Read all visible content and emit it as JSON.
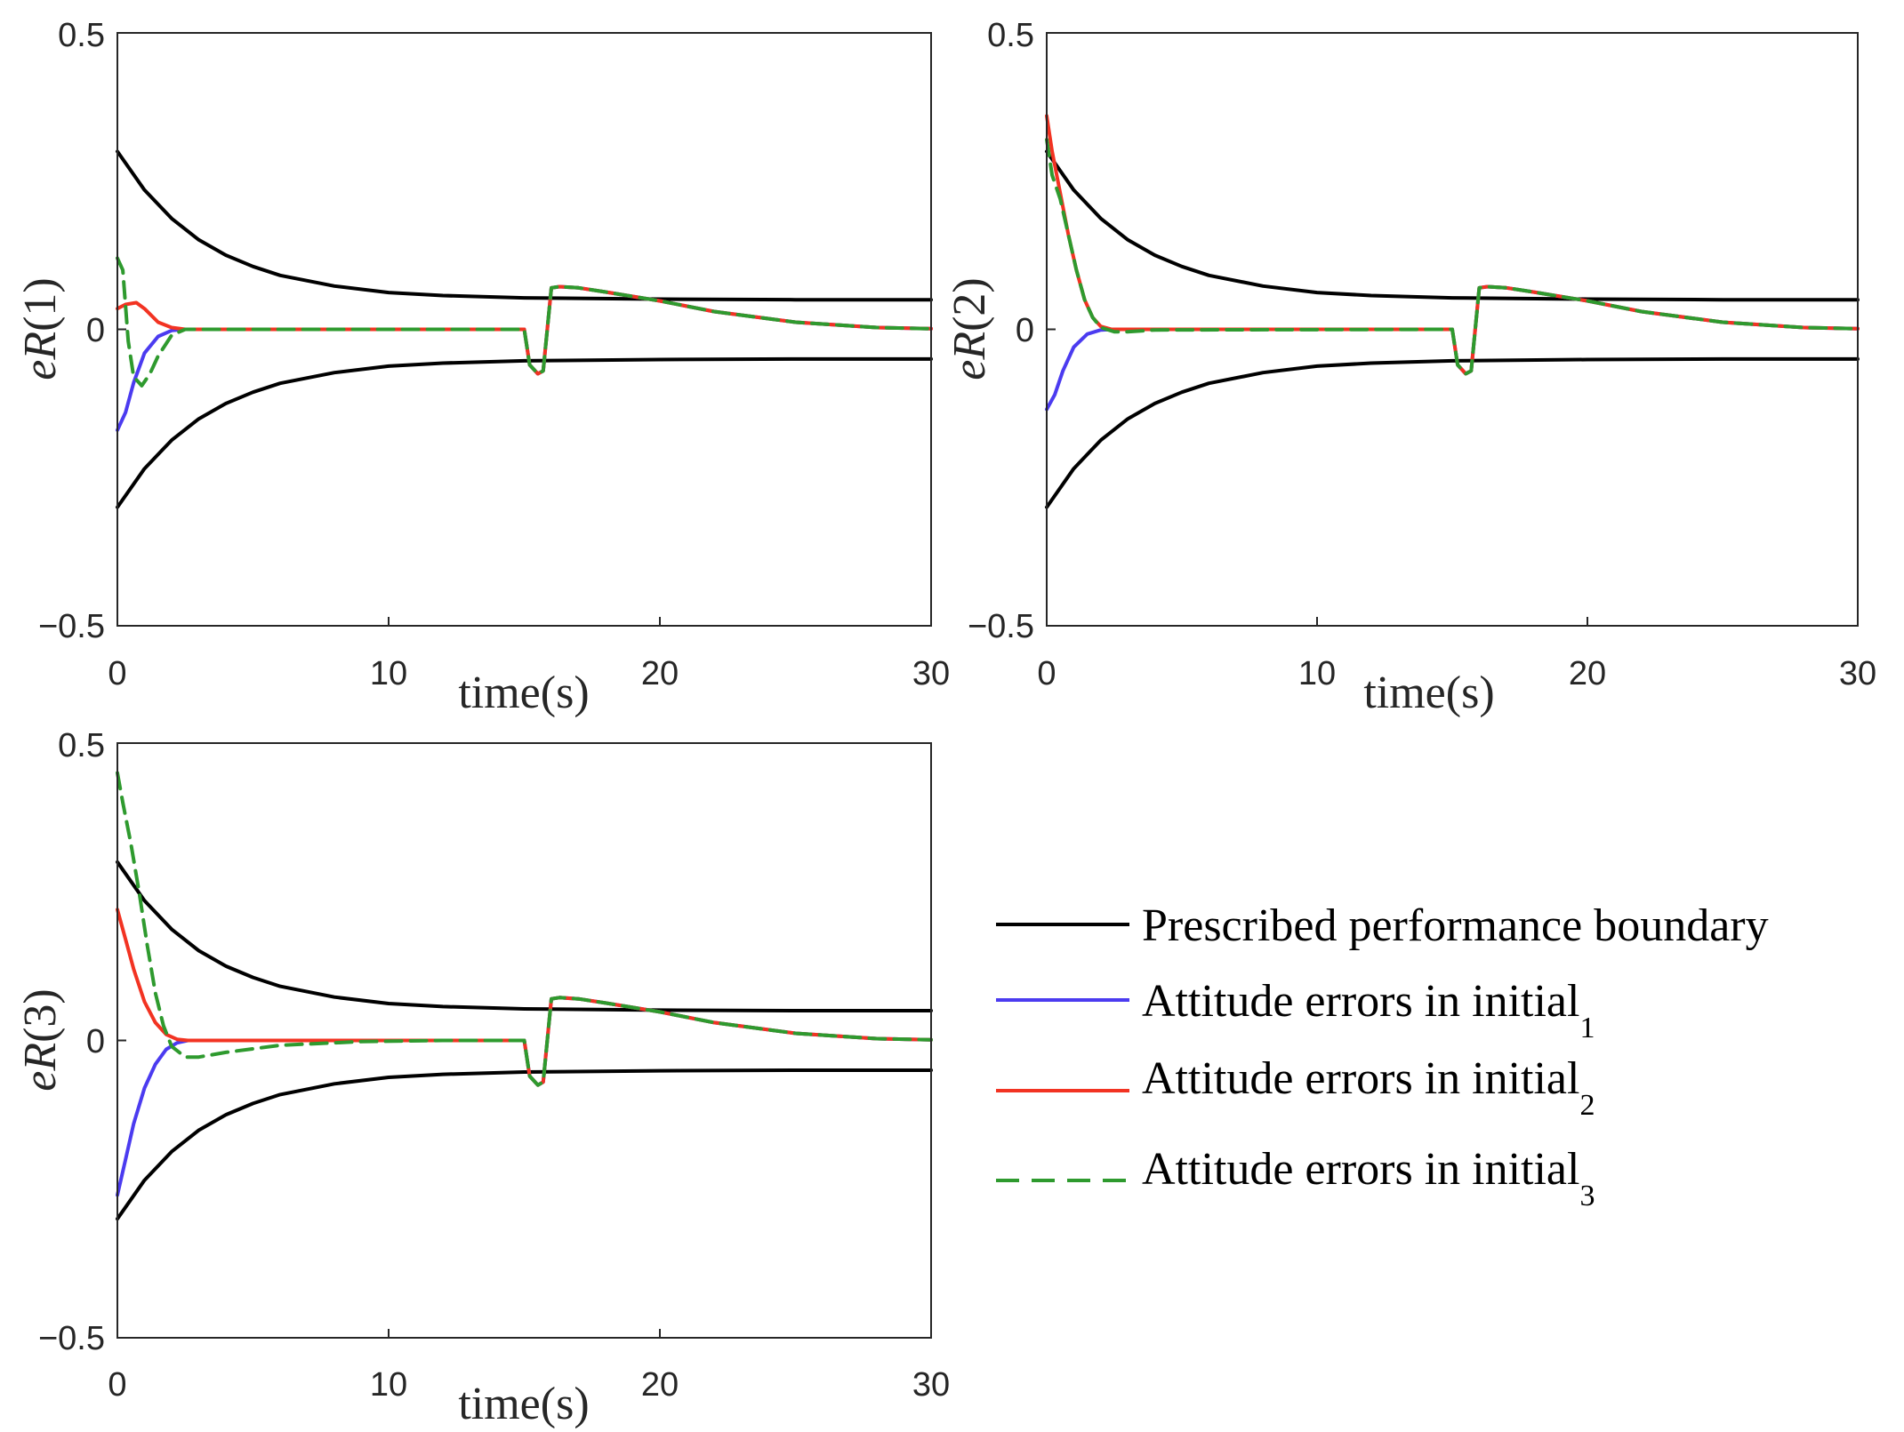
{
  "colors": {
    "boundary": "#000000",
    "initial_1": "#4B3BF0",
    "initial_2": "#F23322",
    "initial_3": "#2E9A2E",
    "axis": "#262626"
  },
  "legend": {
    "items": [
      {
        "key": "boundary",
        "label": "Prescribed performance boundary",
        "sub": "",
        "dash": false
      },
      {
        "key": "initial_1",
        "label": "Attitude errors in initial",
        "sub": "1",
        "dash": false
      },
      {
        "key": "initial_2",
        "label": "Attitude errors in initial",
        "sub": "2",
        "dash": false
      },
      {
        "key": "initial_3",
        "label": "Attitude errors in initial",
        "sub": "3",
        "dash": true
      }
    ]
  },
  "chart_data": [
    {
      "type": "line",
      "id": "eR1",
      "ylabel_var": "eR",
      "ylabel_arg": "(1)",
      "xlabel": "time(s)",
      "xlim": [
        0,
        30
      ],
      "ylim": [
        -0.5,
        0.5
      ],
      "xticks": [
        "0",
        "10",
        "20",
        "30"
      ],
      "yticks": [
        "0.5",
        "0",
        "−0.5"
      ],
      "boundary": {
        "rho0": 0.3,
        "rho_inf": 0.05,
        "decay": 0.3
      },
      "series": [
        {
          "name": "Prescribed performance boundary (upper)",
          "key": "boundary",
          "x": [
            0,
            1,
            2,
            3,
            4,
            5,
            6,
            8,
            10,
            12,
            15,
            20,
            25,
            30
          ],
          "y": [
            0.3,
            0.235,
            0.187,
            0.151,
            0.125,
            0.106,
            0.091,
            0.073,
            0.062,
            0.057,
            0.053,
            0.051,
            0.05,
            0.05
          ]
        },
        {
          "name": "Prescribed performance boundary (lower)",
          "key": "boundary",
          "x": [
            0,
            1,
            2,
            3,
            4,
            5,
            6,
            8,
            10,
            12,
            15,
            20,
            25,
            30
          ],
          "y": [
            -0.3,
            -0.235,
            -0.187,
            -0.151,
            -0.125,
            -0.106,
            -0.091,
            -0.073,
            -0.062,
            -0.057,
            -0.053,
            -0.051,
            -0.05,
            -0.05
          ]
        },
        {
          "name": "Attitude errors in initial 1",
          "key": "initial_1",
          "x": [
            0,
            0.3,
            0.6,
            1.0,
            1.5,
            2.0,
            2.5,
            15.0,
            15.2,
            15.5,
            15.7,
            16.0,
            16.3,
            17.0,
            18.0,
            20.0,
            22.0,
            25.0,
            28.0,
            30.0
          ],
          "y": [
            -0.17,
            -0.14,
            -0.09,
            -0.04,
            -0.012,
            -0.002,
            0,
            0,
            -0.06,
            -0.075,
            -0.07,
            0.07,
            0.072,
            0.07,
            0.063,
            0.048,
            0.03,
            0.012,
            0.003,
            0.001
          ]
        },
        {
          "name": "Attitude errors in initial 2",
          "key": "initial_2",
          "x": [
            0,
            0.3,
            0.7,
            1.0,
            1.5,
            2.0,
            2.5,
            15.0,
            15.2,
            15.5,
            15.7,
            16.0,
            16.3,
            17.0,
            18.0,
            20.0,
            22.0,
            25.0,
            28.0,
            30.0
          ],
          "y": [
            0.035,
            0.042,
            0.045,
            0.035,
            0.012,
            0.003,
            0,
            0,
            -0.06,
            -0.075,
            -0.07,
            0.07,
            0.072,
            0.07,
            0.063,
            0.048,
            0.03,
            0.012,
            0.003,
            0.001
          ]
        },
        {
          "name": "Attitude errors in initial 3",
          "key": "initial_3",
          "x": [
            0,
            0.2,
            0.4,
            0.6,
            0.9,
            1.2,
            1.5,
            2.0,
            2.5,
            15.0,
            15.2,
            15.5,
            15.7,
            16.0,
            16.3,
            17.0,
            18.0,
            20.0,
            22.0,
            25.0,
            28.0,
            30.0
          ],
          "y": [
            0.12,
            0.1,
            -0.02,
            -0.08,
            -0.095,
            -0.075,
            -0.045,
            -0.01,
            0,
            0,
            -0.06,
            -0.075,
            -0.07,
            0.07,
            0.072,
            0.07,
            0.063,
            0.048,
            0.03,
            0.012,
            0.003,
            0.001
          ]
        }
      ]
    },
    {
      "type": "line",
      "id": "eR2",
      "ylabel_var": "eR",
      "ylabel_arg": "(2)",
      "xlabel": "time(s)",
      "xlim": [
        0,
        30
      ],
      "ylim": [
        -0.5,
        0.5
      ],
      "xticks": [
        "0",
        "10",
        "20",
        "30"
      ],
      "yticks": [
        "0.5",
        "0",
        "−0.5"
      ],
      "series": [
        {
          "name": "Prescribed performance boundary (upper)",
          "key": "boundary",
          "x": [
            0,
            1,
            2,
            3,
            4,
            5,
            6,
            8,
            10,
            12,
            15,
            20,
            25,
            30
          ],
          "y": [
            0.3,
            0.235,
            0.187,
            0.151,
            0.125,
            0.106,
            0.091,
            0.073,
            0.062,
            0.057,
            0.053,
            0.051,
            0.05,
            0.05
          ]
        },
        {
          "name": "Prescribed performance boundary (lower)",
          "key": "boundary",
          "x": [
            0,
            1,
            2,
            3,
            4,
            5,
            6,
            8,
            10,
            12,
            15,
            20,
            25,
            30
          ],
          "y": [
            -0.3,
            -0.235,
            -0.187,
            -0.151,
            -0.125,
            -0.106,
            -0.091,
            -0.073,
            -0.062,
            -0.057,
            -0.053,
            -0.051,
            -0.05,
            -0.05
          ]
        },
        {
          "name": "Attitude errors in initial 1",
          "key": "initial_1",
          "x": [
            0,
            0.3,
            0.6,
            1.0,
            1.5,
            2.0,
            2.5,
            15.0,
            15.2,
            15.5,
            15.7,
            16.0,
            16.3,
            17.0,
            18.0,
            20.0,
            22.0,
            25.0,
            28.0,
            30.0
          ],
          "y": [
            -0.135,
            -0.11,
            -0.07,
            -0.03,
            -0.008,
            -0.001,
            0,
            0,
            -0.06,
            -0.075,
            -0.07,
            0.07,
            0.072,
            0.07,
            0.063,
            0.048,
            0.03,
            0.012,
            0.003,
            0.001
          ]
        },
        {
          "name": "Attitude errors in initial 2",
          "key": "initial_2",
          "x": [
            0,
            0.2,
            0.5,
            0.8,
            1.1,
            1.4,
            1.7,
            2.0,
            2.4,
            15.0,
            15.2,
            15.5,
            15.7,
            16.0,
            16.3,
            17.0,
            18.0,
            20.0,
            22.0,
            25.0,
            28.0,
            30.0
          ],
          "y": [
            0.36,
            0.3,
            0.23,
            0.16,
            0.1,
            0.05,
            0.02,
            0.005,
            0,
            0,
            -0.06,
            -0.075,
            -0.07,
            0.07,
            0.072,
            0.07,
            0.063,
            0.048,
            0.03,
            0.012,
            0.003,
            0.001
          ]
        },
        {
          "name": "Attitude errors in initial 3",
          "key": "initial_3",
          "x": [
            0,
            0.2,
            0.5,
            0.8,
            1.1,
            1.4,
            1.7,
            2.0,
            2.5,
            3.0,
            4.0,
            15.0,
            15.2,
            15.5,
            15.7,
            16.0,
            16.3,
            17.0,
            18.0,
            20.0,
            22.0,
            25.0,
            28.0,
            30.0
          ],
          "y": [
            0.32,
            0.26,
            0.22,
            0.16,
            0.1,
            0.05,
            0.02,
            0.003,
            -0.004,
            -0.004,
            -0.001,
            0,
            -0.06,
            -0.075,
            -0.07,
            0.07,
            0.072,
            0.07,
            0.063,
            0.048,
            0.03,
            0.012,
            0.003,
            0.001
          ]
        }
      ]
    },
    {
      "type": "line",
      "id": "eR3",
      "ylabel_var": "eR",
      "ylabel_arg": "(3)",
      "xlabel": "time(s)",
      "xlim": [
        0,
        30
      ],
      "ylim": [
        -0.5,
        0.5
      ],
      "xticks": [
        "0",
        "10",
        "20",
        "30"
      ],
      "yticks": [
        "0.5",
        "0",
        "−0.5"
      ],
      "series": [
        {
          "name": "Prescribed performance boundary (upper)",
          "key": "boundary",
          "x": [
            0,
            1,
            2,
            3,
            4,
            5,
            6,
            8,
            10,
            12,
            15,
            20,
            25,
            30
          ],
          "y": [
            0.3,
            0.235,
            0.187,
            0.151,
            0.125,
            0.106,
            0.091,
            0.073,
            0.062,
            0.057,
            0.053,
            0.051,
            0.05,
            0.05
          ]
        },
        {
          "name": "Prescribed performance boundary (lower)",
          "key": "boundary",
          "x": [
            0,
            1,
            2,
            3,
            4,
            5,
            6,
            8,
            10,
            12,
            15,
            20,
            25,
            30
          ],
          "y": [
            -0.3,
            -0.235,
            -0.187,
            -0.151,
            -0.125,
            -0.106,
            -0.091,
            -0.073,
            -0.062,
            -0.057,
            -0.053,
            -0.051,
            -0.05,
            -0.05
          ]
        },
        {
          "name": "Attitude errors in initial 1",
          "key": "initial_1",
          "x": [
            0,
            0.3,
            0.6,
            1.0,
            1.4,
            1.8,
            2.2,
            2.6,
            15.0,
            15.2,
            15.5,
            15.7,
            16.0,
            16.3,
            17.0,
            18.0,
            20.0,
            22.0,
            25.0,
            28.0,
            30.0
          ],
          "y": [
            -0.26,
            -0.2,
            -0.14,
            -0.08,
            -0.04,
            -0.015,
            -0.004,
            0,
            0,
            -0.06,
            -0.075,
            -0.07,
            0.07,
            0.072,
            0.07,
            0.063,
            0.048,
            0.03,
            0.012,
            0.003,
            0.001
          ]
        },
        {
          "name": "Attitude errors in initial 2",
          "key": "initial_2",
          "x": [
            0,
            0.3,
            0.6,
            1.0,
            1.4,
            1.8,
            2.2,
            2.6,
            15.0,
            15.2,
            15.5,
            15.7,
            16.0,
            16.3,
            17.0,
            18.0,
            20.0,
            22.0,
            25.0,
            28.0,
            30.0
          ],
          "y": [
            0.22,
            0.17,
            0.12,
            0.065,
            0.03,
            0.01,
            0.002,
            0,
            0,
            -0.06,
            -0.075,
            -0.07,
            0.07,
            0.072,
            0.07,
            0.063,
            0.048,
            0.03,
            0.012,
            0.003,
            0.001
          ]
        },
        {
          "name": "Attitude errors in initial 3",
          "key": "initial_3",
          "x": [
            0,
            0.2,
            0.5,
            0.8,
            1.1,
            1.4,
            1.7,
            2.0,
            2.5,
            3.0,
            4.0,
            6.0,
            9.0,
            12.0,
            15.0,
            15.2,
            15.5,
            15.7,
            16.0,
            16.3,
            17.0,
            18.0,
            20.0,
            22.0,
            25.0,
            28.0,
            30.0
          ],
          "y": [
            0.45,
            0.4,
            0.33,
            0.25,
            0.16,
            0.08,
            0.025,
            -0.01,
            -0.028,
            -0.028,
            -0.02,
            -0.008,
            -0.002,
            0,
            0,
            -0.06,
            -0.075,
            -0.07,
            0.07,
            0.072,
            0.07,
            0.063,
            0.048,
            0.03,
            0.012,
            0.003,
            0.001
          ]
        }
      ]
    }
  ]
}
